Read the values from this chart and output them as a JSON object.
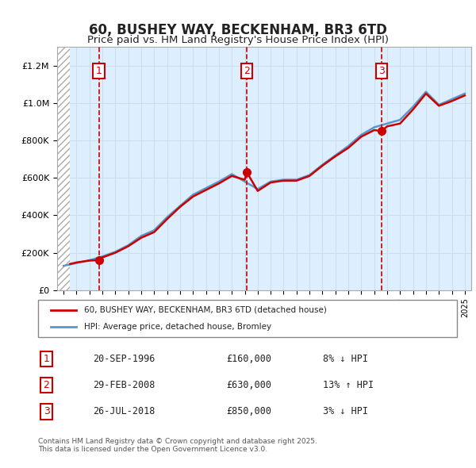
{
  "title": "60, BUSHEY WAY, BECKENHAM, BR3 6TD",
  "subtitle": "Price paid vs. HM Land Registry's House Price Index (HPI)",
  "legend_price": "60, BUSHEY WAY, BECKENHAM, BR3 6TD (detached house)",
  "legend_hpi": "HPI: Average price, detached house, Bromley",
  "footer": "Contains HM Land Registry data © Crown copyright and database right 2025.\nThis data is licensed under the Open Government Licence v3.0.",
  "transactions": [
    {
      "num": 1,
      "date": "20-SEP-1996",
      "price": "£160,000",
      "pct": "8% ↓ HPI",
      "year": 1996.72
    },
    {
      "num": 2,
      "date": "29-FEB-2008",
      "price": "£630,000",
      "pct": "13% ↑ HPI",
      "year": 2008.16
    },
    {
      "num": 3,
      "date": "26-JUL-2018",
      "price": "£850,000",
      "pct": "3% ↓ HPI",
      "year": 2018.56
    }
  ],
  "sale_prices": [
    160000,
    630000,
    850000
  ],
  "hpi_line": {
    "years": [
      1994,
      1995,
      1996,
      1997,
      1998,
      1999,
      2000,
      2001,
      2002,
      2003,
      2004,
      2005,
      2006,
      2007,
      2008,
      2009,
      2010,
      2011,
      2012,
      2013,
      2014,
      2015,
      2016,
      2017,
      2018,
      2019,
      2020,
      2021,
      2022,
      2023,
      2024,
      2025
    ],
    "values": [
      130000,
      145000,
      160000,
      180000,
      205000,
      240000,
      290000,
      320000,
      390000,
      450000,
      510000,
      545000,
      580000,
      620000,
      580000,
      540000,
      580000,
      590000,
      590000,
      615000,
      670000,
      720000,
      770000,
      830000,
      870000,
      890000,
      910000,
      980000,
      1060000,
      990000,
      1020000,
      1050000
    ]
  },
  "price_line": {
    "years": [
      1994.5,
      1995,
      1996,
      1996.72,
      1997,
      1998,
      1999,
      2000,
      2001,
      2002,
      2003,
      2004,
      2005,
      2006,
      2007,
      2008,
      2008.16,
      2009,
      2010,
      2011,
      2012,
      2013,
      2014,
      2015,
      2016,
      2017,
      2018,
      2018.56,
      2019,
      2020,
      2021,
      2022,
      2023,
      2024,
      2025
    ],
    "values": [
      140000,
      148000,
      158000,
      160000,
      175000,
      200000,
      235000,
      280000,
      310000,
      380000,
      445000,
      500000,
      535000,
      570000,
      610000,
      590000,
      630000,
      530000,
      575000,
      585000,
      585000,
      610000,
      665000,
      715000,
      760000,
      820000,
      855000,
      850000,
      875000,
      890000,
      965000,
      1050000,
      985000,
      1010000,
      1040000
    ]
  },
  "ylim": [
    0,
    1300000
  ],
  "xlim": [
    1993.5,
    2025.5
  ],
  "hatch_end": 1994.5,
  "grid_color": "#ccddee",
  "bg_color": "#ddeeff",
  "plot_bg": "#ffffff",
  "red_color": "#cc0000",
  "blue_color": "#5599cc"
}
